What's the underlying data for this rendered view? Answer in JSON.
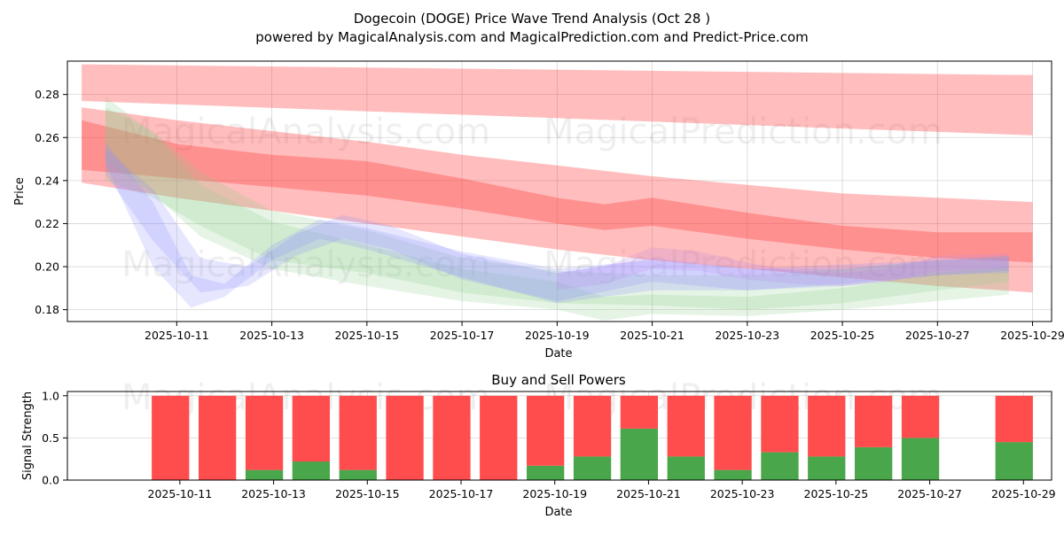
{
  "header": {
    "title_line1": "Dogecoin (DOGE) Price Wave Trend Analysis (Oct 28 )",
    "title_line2": "powered by MagicalAnalysis.com and MagicalPrediction.com and Predict-Price.com"
  },
  "watermarks": [
    "MagicalAnalysis.com",
    "MagicalPrediction.com"
  ],
  "colors": {
    "red_band": "#ff3333",
    "red_bar": "#ff4d4d",
    "green_bar": "#4aa64a",
    "green_band": "#88cc88",
    "blue_band": "#8c8cff",
    "violet_band": "#bb88ee"
  },
  "chart_data": [
    {
      "type": "area",
      "name": "price-wave-chart",
      "title": "",
      "xlabel": "Date",
      "ylabel": "Price",
      "xlim": [
        -1.3,
        19.4
      ],
      "ylim": [
        0.1745,
        0.2955
      ],
      "x_tick_positions": [
        1,
        3,
        5,
        7,
        9,
        11,
        13,
        15,
        17,
        19
      ],
      "x_tick_labels": [
        "2025-10-11",
        "2025-10-13",
        "2025-10-15",
        "2025-10-17",
        "2025-10-19",
        "2025-10-21",
        "2025-10-23",
        "2025-10-25",
        "2025-10-27",
        "2025-10-29"
      ],
      "y_ticks": [
        0.18,
        0.2,
        0.22,
        0.24,
        0.26,
        0.28
      ],
      "y_tick_labels": [
        "0.18",
        "0.20",
        "0.22",
        "0.24",
        "0.26",
        "0.28"
      ],
      "grid": true,
      "series": [
        {
          "name": "red-band-upper",
          "color": "red",
          "opacity": 0.32,
          "x": [
            -1,
            19
          ],
          "upper": [
            0.294,
            0.289
          ],
          "lower": [
            0.277,
            0.261
          ]
        },
        {
          "name": "red-band-mid",
          "color": "red",
          "opacity": 0.32,
          "x": [
            -1,
            1,
            3,
            5,
            7,
            9,
            11,
            13,
            15,
            17,
            19
          ],
          "upper": [
            0.274,
            0.268,
            0.263,
            0.258,
            0.252,
            0.247,
            0.242,
            0.238,
            0.234,
            0.232,
            0.23
          ],
          "lower": [
            0.239,
            0.232,
            0.226,
            0.22,
            0.214,
            0.208,
            0.203,
            0.199,
            0.195,
            0.191,
            0.188
          ]
        },
        {
          "name": "red-band-core",
          "color": "red",
          "opacity": 0.32,
          "x": [
            -1,
            1,
            3,
            5,
            7,
            9,
            10,
            11,
            13,
            15,
            17,
            19
          ],
          "upper": [
            0.268,
            0.257,
            0.252,
            0.249,
            0.241,
            0.232,
            0.229,
            0.232,
            0.225,
            0.219,
            0.216,
            0.216
          ],
          "lower": [
            0.245,
            0.241,
            0.237,
            0.233,
            0.227,
            0.22,
            0.217,
            0.219,
            0.213,
            0.208,
            0.204,
            0.202
          ]
        },
        {
          "name": "green-band-1",
          "color": "green",
          "opacity": 0.22,
          "x": [
            -0.5,
            0.5,
            1.5,
            3,
            5,
            7,
            9,
            11,
            13,
            15,
            17,
            18.5
          ],
          "upper": [
            0.274,
            0.263,
            0.244,
            0.226,
            0.217,
            0.204,
            0.198,
            0.196,
            0.196,
            0.199,
            0.203,
            0.205
          ],
          "lower": [
            0.24,
            0.232,
            0.219,
            0.203,
            0.197,
            0.188,
            0.183,
            0.182,
            0.18,
            0.183,
            0.189,
            0.193
          ]
        },
        {
          "name": "green-band-2",
          "color": "green",
          "opacity": 0.22,
          "x": [
            -0.5,
            0.5,
            1.5,
            3,
            5,
            7,
            9,
            10,
            11,
            13,
            15,
            17,
            18.5
          ],
          "upper": [
            0.279,
            0.262,
            0.238,
            0.221,
            0.21,
            0.199,
            0.193,
            0.186,
            0.187,
            0.186,
            0.19,
            0.197,
            0.2
          ],
          "lower": [
            0.249,
            0.234,
            0.214,
            0.199,
            0.191,
            0.184,
            0.18,
            0.175,
            0.178,
            0.177,
            0.18,
            0.184,
            0.187
          ]
        },
        {
          "name": "blue-band-1",
          "color": "blue",
          "opacity": 0.22,
          "x": [
            -0.5,
            0.5,
            1.3,
            2,
            3,
            4,
            5,
            7,
            9,
            11,
            13,
            15,
            17,
            18.5
          ],
          "upper": [
            0.258,
            0.23,
            0.196,
            0.192,
            0.21,
            0.222,
            0.218,
            0.207,
            0.199,
            0.203,
            0.199,
            0.201,
            0.203,
            0.205
          ],
          "lower": [
            0.248,
            0.2,
            0.181,
            0.186,
            0.203,
            0.213,
            0.208,
            0.195,
            0.183,
            0.189,
            0.189,
            0.192,
            0.196,
            0.198
          ]
        },
        {
          "name": "blue-band-2",
          "color": "blue",
          "opacity": 0.22,
          "x": [
            -0.5,
            0.5,
            1.5,
            2.5,
            3.5,
            4.5,
            5.5,
            7,
            9,
            11,
            13,
            15,
            17,
            18.5
          ],
          "upper": [
            0.255,
            0.236,
            0.204,
            0.2,
            0.215,
            0.224,
            0.219,
            0.206,
            0.197,
            0.204,
            0.199,
            0.199,
            0.203,
            0.204
          ],
          "lower": [
            0.243,
            0.212,
            0.188,
            0.191,
            0.205,
            0.213,
            0.208,
            0.194,
            0.184,
            0.193,
            0.189,
            0.191,
            0.196,
            0.197
          ]
        },
        {
          "name": "violet-band",
          "color": "violet",
          "opacity": 0.22,
          "x": [
            9,
            10,
            11,
            12,
            13,
            14,
            15,
            16,
            17,
            18.5
          ],
          "upper": [
            0.197,
            0.2,
            0.209,
            0.207,
            0.202,
            0.198,
            0.197,
            0.199,
            0.205,
            0.206
          ],
          "lower": [
            0.189,
            0.192,
            0.199,
            0.198,
            0.194,
            0.192,
            0.191,
            0.193,
            0.198,
            0.199
          ]
        }
      ]
    },
    {
      "type": "bar",
      "name": "buy-sell-chart",
      "title": "Buy and Sell Powers",
      "xlabel": "Date",
      "ylabel": "Signal Strength",
      "xlim": [
        -1.4,
        19.6
      ],
      "ylim": [
        0,
        1.05
      ],
      "y_ticks": [
        0.0,
        0.5,
        1.0
      ],
      "y_tick_labels": [
        "0.0",
        "0.5",
        "1.0"
      ],
      "x_tick_positions": [
        1,
        3,
        5,
        7,
        9,
        11,
        13,
        15,
        17,
        19
      ],
      "x_tick_labels": [
        "2025-10-11",
        "2025-10-13",
        "2025-10-15",
        "2025-10-17",
        "2025-10-19",
        "2025-10-21",
        "2025-10-23",
        "2025-10-25",
        "2025-10-27",
        "2025-10-29"
      ],
      "grid": true,
      "positions": [
        0.8,
        1.8,
        2.8,
        3.8,
        4.8,
        5.8,
        6.8,
        7.8,
        8.8,
        9.8,
        10.8,
        11.8,
        12.8,
        13.8,
        14.8,
        15.8,
        16.8,
        18.8
      ],
      "series": [
        {
          "name": "Buy",
          "color": "green",
          "values": [
            0.0,
            0.0,
            0.12,
            0.22,
            0.12,
            0.0,
            0.0,
            0.0,
            0.17,
            0.28,
            0.61,
            0.28,
            0.12,
            0.33,
            0.28,
            0.39,
            0.5,
            0.45
          ]
        },
        {
          "name": "Sell",
          "color": "red",
          "values": [
            1.0,
            1.0,
            0.88,
            0.78,
            0.88,
            1.0,
            1.0,
            1.0,
            0.83,
            0.72,
            0.39,
            0.72,
            0.88,
            0.67,
            0.72,
            0.61,
            0.5,
            0.55
          ]
        }
      ]
    }
  ]
}
